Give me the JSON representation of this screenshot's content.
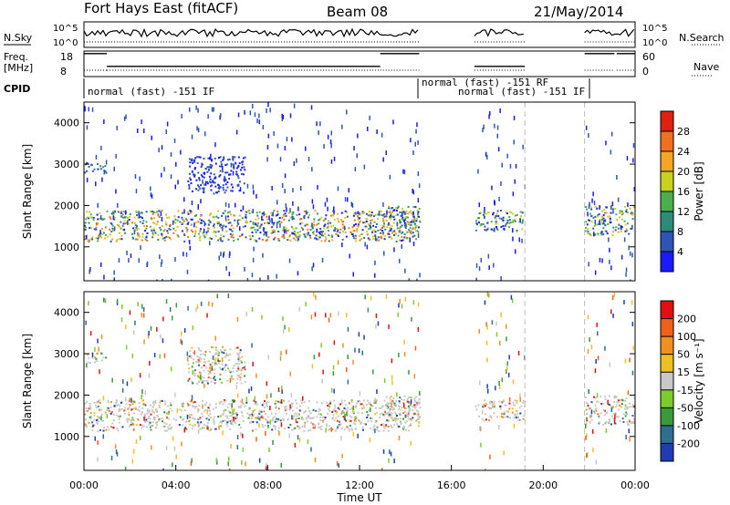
{
  "header": {
    "station": "Fort Hays East (fitACF)",
    "beam": "Beam 08",
    "date": "21/May/2014"
  },
  "strip_labels": {
    "nsky": "N.Sky",
    "nsearch": "N.Search",
    "freq_line1": "Freq.",
    "freq_line2": "[MHz]",
    "nave": "Nave",
    "cpid": "CPID"
  },
  "strip_ticks": {
    "noise_left": [
      "10^5",
      "10^0"
    ],
    "noise_right": [
      "10^5",
      "10^0"
    ],
    "freq_left": [
      "18",
      "8"
    ],
    "nave_right": [
      "60",
      "0"
    ]
  },
  "cpid_labels": [
    "normal (fast) -151 IF",
    "normal (fast) -151  RF",
    "normal (fast) -151 IF"
  ],
  "colorbars": {
    "power": {
      "label": "Power [dB]",
      "ticks": [
        "4",
        "8",
        "12",
        "16",
        "20",
        "24",
        "28"
      ],
      "colors": [
        "#1a1aff",
        "#2d56b4",
        "#2e8b7a",
        "#4cae4c",
        "#c8d21e",
        "#f5a623",
        "#f07020",
        "#e02010"
      ]
    },
    "velocity": {
      "label": "Velocity [m s⁻¹]",
      "ticks": [
        "200",
        "100",
        "50",
        "15",
        "-15",
        "-50",
        "-100",
        "-200"
      ],
      "colors": [
        "#1f3cb4",
        "#2e6e8e",
        "#3a9a3a",
        "#7ccc2c",
        "#c8c8c8",
        "#f0c020",
        "#f09020",
        "#f06018",
        "#e01010"
      ]
    }
  },
  "chart_data": [
    {
      "type": "heatmap",
      "parameter": "Power",
      "xlabel": "",
      "ylabel": "Slant Range [km]",
      "ylim": [
        180,
        4500
      ],
      "yticks": [
        "1000",
        "2000",
        "3000",
        "4000"
      ],
      "xlim_hours": [
        0,
        24
      ],
      "data_gaps_hours": [
        [
          14.6,
          17.0
        ],
        [
          19.2,
          21.8
        ]
      ],
      "bands": [
        {
          "start_hour": 0.0,
          "end_hour": 14.6,
          "range_km": [
            1150,
            1900
          ],
          "peak_dB": 28
        },
        {
          "start_hour": 0.0,
          "end_hour": 1.0,
          "range_km": [
            2800,
            3050
          ],
          "peak_dB": 12
        },
        {
          "start_hour": 4.5,
          "end_hour": 7.0,
          "range_km": [
            2300,
            3200
          ],
          "peak_dB": 8
        },
        {
          "start_hour": 13.0,
          "end_hour": 14.6,
          "range_km": [
            1400,
            2000
          ],
          "peak_dB": 24
        },
        {
          "start_hour": 17.0,
          "end_hour": 19.2,
          "range_km": [
            1400,
            1900
          ],
          "peak_dB": 20
        },
        {
          "start_hour": 21.8,
          "end_hour": 24.0,
          "range_km": [
            1300,
            2000
          ],
          "peak_dB": 24
        }
      ]
    },
    {
      "type": "heatmap",
      "parameter": "Velocity",
      "xlabel": "Time UT",
      "ylabel": "Slant Range [km]",
      "ylim": [
        180,
        4500
      ],
      "yticks": [
        "1000",
        "2000",
        "3000",
        "4000"
      ],
      "xticks": [
        "00:00",
        "04:00",
        "08:00",
        "12:00",
        "16:00",
        "20:00",
        "00:00"
      ],
      "xlim_hours": [
        0,
        24
      ],
      "data_gaps_hours": [
        [
          14.6,
          17.0
        ],
        [
          19.2,
          21.8
        ]
      ]
    }
  ],
  "noise_sky_hours": [
    [
      0.0,
      14.6
    ],
    [
      17.0,
      19.2
    ],
    [
      21.8,
      24.0
    ]
  ],
  "freq_series": [
    {
      "start_hour": 0.0,
      "end_hour": 1.0,
      "value_mhz": 17
    },
    {
      "start_hour": 1.0,
      "end_hour": 12.9,
      "value_mhz": 12
    },
    {
      "start_hour": 12.9,
      "end_hour": 14.6,
      "value_mhz": 17
    },
    {
      "start_hour": 17.0,
      "end_hour": 19.2,
      "value_mhz": 12
    },
    {
      "start_hour": 21.8,
      "end_hour": 23.1,
      "value_mhz": 17
    },
    {
      "start_hour": 23.2,
      "end_hour": 24.0,
      "value_mhz": 17
    }
  ]
}
